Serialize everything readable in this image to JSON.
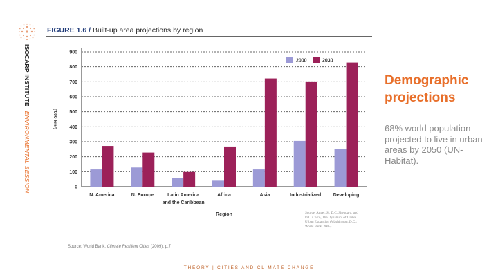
{
  "slide": {
    "side_label_plain": "ISOCARP INSTITUTE",
    "side_label_italic": "ENVIRONMENTAL SESSION",
    "figure_number": "FIGURE 1.6 /",
    "figure_title": "Built-up area projections by region",
    "heading_line1": "Demographic",
    "heading_line2": "projections",
    "description": "68% world population projected to live in urban areas by 2050 (UN-Habitat).",
    "book_source": "Source: Angel, S., D.C. Sheppard, and D.L. Civco, The Dynamics of Global Urban Expansion (Washington, D.C.: World Bank, 2005).",
    "source_prefix": "Source: World Bank, ",
    "source_title": "Climate Resilient Cities",
    "source_suffix": " (2009), p.7",
    "footer": "THEORY | CITIES AND CLIMATE CHANGE"
  },
  "colors": {
    "series_2000": "#9c9ad6",
    "series_2030": "#9c2159",
    "heading": "#e86f2a",
    "footer": "#c0662e",
    "logo": "#e8a07a"
  },
  "chart_data": {
    "type": "bar",
    "categories": [
      "N. America",
      "N. Europe",
      "Latin America and the Caribbean",
      "Africa",
      "Asia",
      "Industrialized",
      "Developing"
    ],
    "series": [
      {
        "name": "2000",
        "values": [
          115,
          128,
          60,
          40,
          115,
          305,
          252
        ]
      },
      {
        "name": "2030",
        "values": [
          272,
          228,
          98,
          268,
          722,
          702,
          828
        ]
      }
    ],
    "title": "Built-up area projections by region",
    "xlabel": "Region",
    "ylabel": "('000 km²)",
    "ylim": [
      0,
      900
    ],
    "yticks": [
      0,
      100,
      200,
      300,
      400,
      500,
      600,
      700,
      800,
      900
    ],
    "grid": true,
    "legend": "top-right"
  }
}
